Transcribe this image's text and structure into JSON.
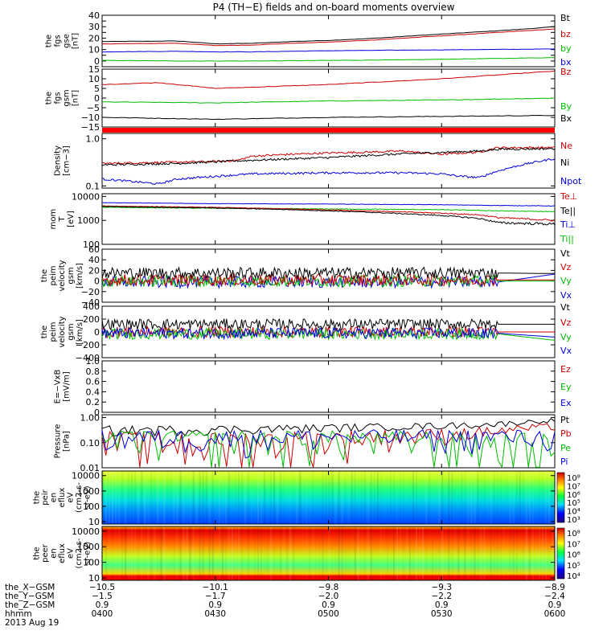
{
  "title": "P4 (TH−E) fields and on-board moments overview",
  "chart_data": [
    {
      "id": "fgs_gse",
      "type": "line",
      "ylabel": [
        "the",
        "fgs",
        "gse",
        "[nT]"
      ],
      "ylim": [
        -5,
        40
      ],
      "yticks": [
        0,
        5,
        10,
        15,
        20,
        25,
        30,
        35,
        40
      ],
      "ytick_labels": [
        "0",
        "",
        "10",
        "",
        "20",
        "",
        "30",
        "",
        "40"
      ],
      "legend": [
        {
          "label": "Bt",
          "color": "#000000"
        },
        {
          "label": "bz",
          "color": "#cc0000"
        },
        {
          "label": "by",
          "color": "#00bb00"
        },
        {
          "label": "bx",
          "color": "#0000dd"
        }
      ],
      "series": [
        {
          "name": "Bt",
          "color": "#000000",
          "x": [
            0,
            20,
            30,
            40,
            50,
            60,
            70,
            80,
            90,
            100,
            110,
            120
          ],
          "y": [
            17,
            17.5,
            15,
            15.5,
            17,
            18,
            19.5,
            21.5,
            23.5,
            25.5,
            27.5,
            30
          ]
        },
        {
          "name": "bz",
          "color": "#cc0000",
          "x": [
            0,
            20,
            30,
            40,
            50,
            60,
            70,
            80,
            90,
            100,
            110,
            120
          ],
          "y": [
            15,
            15.5,
            13.5,
            14,
            15.5,
            16.5,
            18,
            20,
            22,
            24,
            26,
            28
          ]
        },
        {
          "name": "by",
          "color": "#00bb00",
          "x": [
            0,
            20,
            40,
            60,
            80,
            100,
            120
          ],
          "y": [
            0.5,
            0,
            0,
            0.5,
            1,
            2,
            3
          ]
        },
        {
          "name": "bx",
          "color": "#0000dd",
          "x": [
            0,
            20,
            30,
            40,
            60,
            80,
            100,
            120
          ],
          "y": [
            8,
            8.5,
            8,
            8,
            9,
            9.5,
            10,
            10.5
          ]
        }
      ]
    },
    {
      "id": "fgs_gsm",
      "type": "line",
      "ylabel": [
        "the",
        "fgs",
        "gsm",
        "[nT]"
      ],
      "ylim": [
        -15,
        15
      ],
      "yticks": [
        -15,
        -10,
        -5,
        0,
        5,
        10,
        15
      ],
      "ytick_labels": [
        "−15",
        "−10",
        "−5",
        "0",
        "5",
        "10",
        "15"
      ],
      "legend": [
        {
          "label": "Bz",
          "color": "#cc0000"
        },
        {
          "label": "By",
          "color": "#00bb00"
        },
        {
          "label": "Bx",
          "color": "#000000"
        }
      ],
      "series": [
        {
          "name": "Bz",
          "color": "#cc0000",
          "x": [
            0,
            15,
            30,
            45,
            60,
            75,
            90,
            105,
            120
          ],
          "y": [
            7,
            8,
            5,
            6,
            7,
            8.5,
            10,
            12,
            14
          ]
        },
        {
          "name": "By",
          "color": "#00bb00",
          "x": [
            0,
            30,
            60,
            90,
            120
          ],
          "y": [
            -2,
            -2.5,
            -1.5,
            -1,
            0
          ]
        },
        {
          "name": "Bx",
          "color": "#000000",
          "x": [
            0,
            30,
            60,
            90,
            120
          ],
          "y": [
            -10,
            -11,
            -10,
            -9.5,
            -9
          ]
        }
      ]
    },
    {
      "id": "density",
      "type": "line",
      "yscale": "log",
      "ylabel": [
        "Density",
        "[cm−3]"
      ],
      "ylim": [
        0.09,
        1.3
      ],
      "yticks": [
        0.1,
        1.0
      ],
      "ytick_labels": [
        "0.1",
        "1.0"
      ],
      "legend": [
        {
          "label": "Ne",
          "color": "#cc0000"
        },
        {
          "label": "Ni",
          "color": "#000000"
        },
        {
          "label": "Npot",
          "color": "#0000dd"
        }
      ],
      "series": [
        {
          "name": "Ne",
          "color": "#cc0000",
          "x": [
            0,
            20,
            30,
            36,
            40,
            50,
            60,
            70,
            80,
            85,
            90,
            100,
            105,
            120
          ],
          "y": [
            0.3,
            0.32,
            0.33,
            0.35,
            0.43,
            0.47,
            0.5,
            0.52,
            0.55,
            0.5,
            0.47,
            0.52,
            0.65,
            0.65
          ]
        },
        {
          "name": "Ni",
          "color": "#000000",
          "x": [
            0,
            20,
            40,
            60,
            80,
            100,
            105,
            120
          ],
          "y": [
            0.28,
            0.3,
            0.35,
            0.4,
            0.48,
            0.55,
            0.6,
            0.62
          ]
        },
        {
          "name": "Npot",
          "color": "#0000dd",
          "x": [
            0,
            10,
            15,
            20,
            30,
            40,
            60,
            80,
            90,
            95,
            100,
            120
          ],
          "y": [
            0.14,
            0.12,
            0.11,
            0.14,
            0.16,
            0.18,
            0.19,
            0.19,
            0.18,
            0.16,
            0.15,
            0.38
          ]
        }
      ]
    },
    {
      "id": "temperature",
      "type": "line",
      "yscale": "log",
      "ylabel": [
        "mom",
        "T",
        "[eV]"
      ],
      "ylim": [
        100,
        13000
      ],
      "yticks": [
        100,
        1000,
        10000
      ],
      "ytick_labels": [
        "100",
        "1000",
        "10000"
      ],
      "legend": [
        {
          "label": "Te⊥",
          "color": "#cc0000"
        },
        {
          "label": "Te||",
          "color": "#000000"
        },
        {
          "label": "Ti⊥",
          "color": "#0000dd"
        },
        {
          "label": "Ti||",
          "color": "#00bb00"
        }
      ],
      "series": [
        {
          "name": "Ti⊥",
          "color": "#0000dd",
          "x": [
            0,
            30,
            60,
            90,
            105,
            120
          ],
          "y": [
            5500,
            5000,
            4800,
            4500,
            4200,
            4000
          ]
        },
        {
          "name": "Ti||",
          "color": "#00bb00",
          "x": [
            0,
            30,
            60,
            90,
            105,
            120
          ],
          "y": [
            3500,
            3200,
            3000,
            2800,
            2500,
            2300
          ]
        },
        {
          "name": "Te⊥",
          "color": "#cc0000",
          "x": [
            0,
            30,
            50,
            70,
            90,
            100,
            105,
            120
          ],
          "y": [
            4000,
            3500,
            3000,
            2500,
            2000,
            1700,
            1300,
            1000
          ]
        },
        {
          "name": "Te||",
          "color": "#000000",
          "x": [
            0,
            30,
            50,
            70,
            90,
            100,
            105,
            120
          ],
          "y": [
            3800,
            3300,
            2800,
            2200,
            1600,
            1200,
            800,
            700
          ]
        }
      ]
    },
    {
      "id": "peim_velocity",
      "type": "line",
      "ylabel": [
        "the",
        "peim",
        "velocity",
        "gsm",
        "[km/s]"
      ],
      "ylim": [
        -40,
        60
      ],
      "yticks": [
        -40,
        -20,
        0,
        20,
        40,
        60
      ],
      "ytick_labels": [
        "−40",
        "−20",
        "0",
        "20",
        "40",
        "60"
      ],
      "legend": [
        {
          "label": "Vt",
          "color": "#000000"
        },
        {
          "label": "Vz",
          "color": "#cc0000"
        },
        {
          "label": "Vy",
          "color": "#00bb00"
        },
        {
          "label": "Vx",
          "color": "#0000dd"
        }
      ],
      "series": [
        {
          "name": "Vx",
          "color": "#0000dd",
          "x": [
            0,
            105,
            120
          ],
          "y": [
            -2,
            -2,
            13
          ]
        },
        {
          "name": "Vy",
          "color": "#00bb00",
          "x": [
            0,
            105,
            120
          ],
          "y": [
            0,
            0,
            0
          ]
        },
        {
          "name": "Vz",
          "color": "#cc0000",
          "x": [
            0,
            105,
            120
          ],
          "y": [
            2,
            2,
            2
          ]
        },
        {
          "name": "Vt",
          "color": "#000000",
          "x": [
            0,
            105,
            120
          ],
          "y": [
            15,
            15,
            14
          ]
        }
      ]
    },
    {
      "id": "peim_velocity_gsm",
      "type": "line",
      "ylabel": [
        "the",
        "peim",
        "velocity",
        "gsm",
        "[km/s]"
      ],
      "ylim": [
        -400,
        400
      ],
      "yticks": [
        -400,
        -200,
        0,
        200,
        400
      ],
      "ytick_labels": [
        "−400",
        "−200",
        "0",
        "200",
        "400"
      ],
      "legend": [
        {
          "label": "Vt",
          "color": "#000000"
        },
        {
          "label": "Vz",
          "color": "#cc0000"
        },
        {
          "label": "Vy",
          "color": "#00bb00"
        },
        {
          "label": "Vx",
          "color": "#0000dd"
        }
      ],
      "series": [
        {
          "name": "Vt",
          "color": "#000000",
          "x": [
            0,
            105,
            120
          ],
          "y": [
            120,
            120,
            120
          ]
        },
        {
          "name": "Vz",
          "color": "#cc0000",
          "x": [
            0,
            105,
            120
          ],
          "y": [
            0,
            0,
            0
          ]
        },
        {
          "name": "Vy",
          "color": "#00bb00",
          "x": [
            0,
            105,
            120
          ],
          "y": [
            -30,
            -30,
            -130
          ]
        },
        {
          "name": "Vx",
          "color": "#0000dd",
          "x": [
            0,
            105,
            120
          ],
          "y": [
            -20,
            -20,
            -80
          ]
        }
      ]
    },
    {
      "id": "efield",
      "type": "line",
      "ylabel": [
        "E=−VxB",
        "[mV/m]"
      ],
      "ylim": [
        0,
        1.0
      ],
      "yticks": [
        0,
        0.2,
        0.4,
        0.6,
        0.8,
        1.0
      ],
      "ytick_labels": [
        "0",
        "0.2",
        "0.4",
        "0.6",
        "0.8",
        "1.0"
      ],
      "legend": [
        {
          "label": "Ez",
          "color": "#cc0000"
        },
        {
          "label": "Ey",
          "color": "#00bb00"
        },
        {
          "label": "Ex",
          "color": "#0000dd"
        }
      ],
      "series": []
    },
    {
      "id": "pressure",
      "type": "line",
      "yscale": "log",
      "ylabel": [
        "Pressure",
        "[nPa]"
      ],
      "ylim": [
        0.01,
        1.3
      ],
      "yticks": [
        0.01,
        0.1,
        1.0
      ],
      "ytick_labels": [
        "0.01",
        "0.10",
        "1.00"
      ],
      "legend": [
        {
          "label": "Pt",
          "color": "#000000"
        },
        {
          "label": "Pb",
          "color": "#cc0000"
        },
        {
          "label": "Pe",
          "color": "#00bb00"
        },
        {
          "label": "Pi",
          "color": "#0000dd"
        }
      ],
      "series": [
        {
          "name": "Pt",
          "color": "#000000",
          "x": [
            0,
            30,
            60,
            90,
            105,
            120
          ],
          "y": [
            0.32,
            0.34,
            0.4,
            0.48,
            0.55,
            0.8
          ]
        },
        {
          "name": "Pb",
          "color": "#cc0000",
          "x": [
            0,
            30,
            60,
            90,
            105,
            120
          ],
          "y": [
            0.13,
            0.11,
            0.15,
            0.22,
            0.3,
            0.45
          ]
        },
        {
          "name": "Pe",
          "color": "#00bb00",
          "x": [
            0,
            30,
            60,
            90,
            105,
            120
          ],
          "y": [
            0.16,
            0.14,
            0.15,
            0.13,
            0.1,
            0.085
          ]
        },
        {
          "name": "Pi",
          "color": "#0000dd",
          "x": [
            0,
            30,
            60,
            90,
            105,
            120
          ],
          "y": [
            0.17,
            0.17,
            0.18,
            0.18,
            0.18,
            0.18
          ]
        }
      ]
    },
    {
      "id": "peir_eflux",
      "type": "heatmap",
      "ylabel": [
        "the",
        "peir",
        "en",
        "eflux",
        "eV",
        "(cm2-s-",
        "sr-eV)"
      ],
      "yscale": "log",
      "ylim": [
        7,
        20000
      ],
      "yticks": [
        10,
        100,
        1000,
        10000
      ],
      "ytick_labels": [
        "10",
        "100",
        "1000",
        "10000"
      ],
      "colorbar_labels": [
        "10⁸",
        "10⁷",
        "10⁶",
        "10⁵",
        "10⁴",
        "10³"
      ]
    },
    {
      "id": "peer_eflux",
      "type": "heatmap",
      "ylabel": [
        "the",
        "peer",
        "en",
        "eflux",
        "eV",
        "(cm2-s-",
        "sr-eV)"
      ],
      "yscale": "log",
      "ylim": [
        7,
        20000
      ],
      "yticks": [
        10,
        100,
        1000,
        10000
      ],
      "ytick_labels": [
        "10",
        "100",
        "1000",
        "10000"
      ],
      "colorbar_labels": [
        "10⁸",
        "10⁷",
        "10⁶",
        "10⁵",
        "10⁴"
      ]
    }
  ],
  "x_axis": {
    "xlim": [
      0,
      120
    ],
    "ticks": [
      0,
      30,
      60,
      90,
      120
    ],
    "rows": [
      {
        "label": "the_X−GSM",
        "values": [
          "−10.5",
          "−10.1",
          "−9.8",
          "−9.3",
          "−8.9"
        ]
      },
      {
        "label": "the_Y−GSM",
        "values": [
          "−1.5",
          "−1.7",
          "−2.0",
          "−2.2",
          "−2.4"
        ]
      },
      {
        "label": "the_Z−GSM",
        "values": [
          "0.9",
          "0.9",
          "0.9",
          "0.9",
          "0.9"
        ]
      },
      {
        "label": "hhmm",
        "values": [
          "0400",
          "0430",
          "0500",
          "0530",
          "0600"
        ]
      }
    ],
    "date": "2013 Aug 19"
  }
}
